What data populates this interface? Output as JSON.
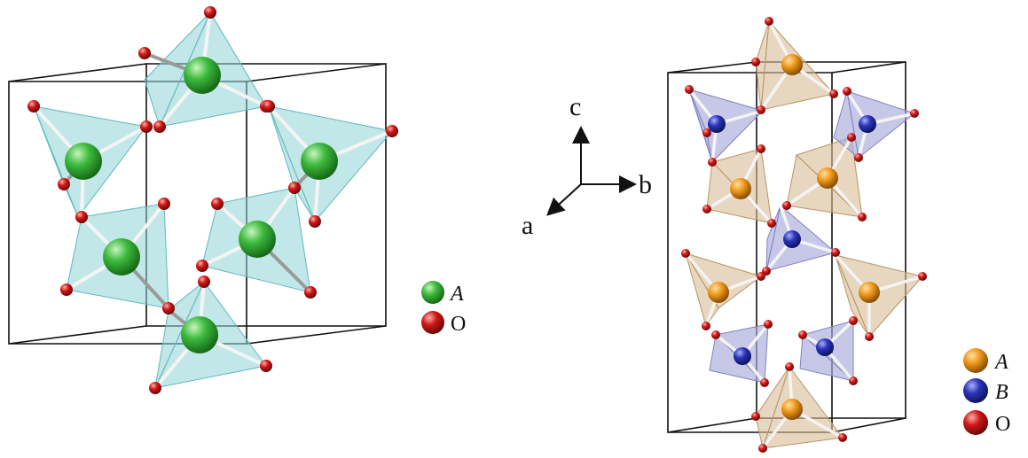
{
  "left_structure": {
    "legend": [
      {
        "symbol": "A",
        "italic": true,
        "color": "#3cb93c",
        "atom": "green-sphere"
      },
      {
        "symbol": "O",
        "italic": false,
        "color": "#d01818",
        "atom": "red-sphere"
      }
    ]
  },
  "axes": {
    "c": "c",
    "b": "b",
    "a": "a"
  },
  "right_structure": {
    "legend": [
      {
        "symbol": "A",
        "italic": true,
        "color": "#f09a1c",
        "atom": "orange-sphere"
      },
      {
        "symbol": "B",
        "italic": true,
        "color": "#2a35b8",
        "atom": "blue-sphere"
      },
      {
        "symbol": "O",
        "italic": false,
        "color": "#d01818",
        "atom": "red-sphere"
      }
    ]
  },
  "colors": {
    "tetra_cyan": "#8fd3d6",
    "tetra_tan": "#d9bd96",
    "tetra_blue": "#a9abdc",
    "cell_line": "#111111"
  }
}
